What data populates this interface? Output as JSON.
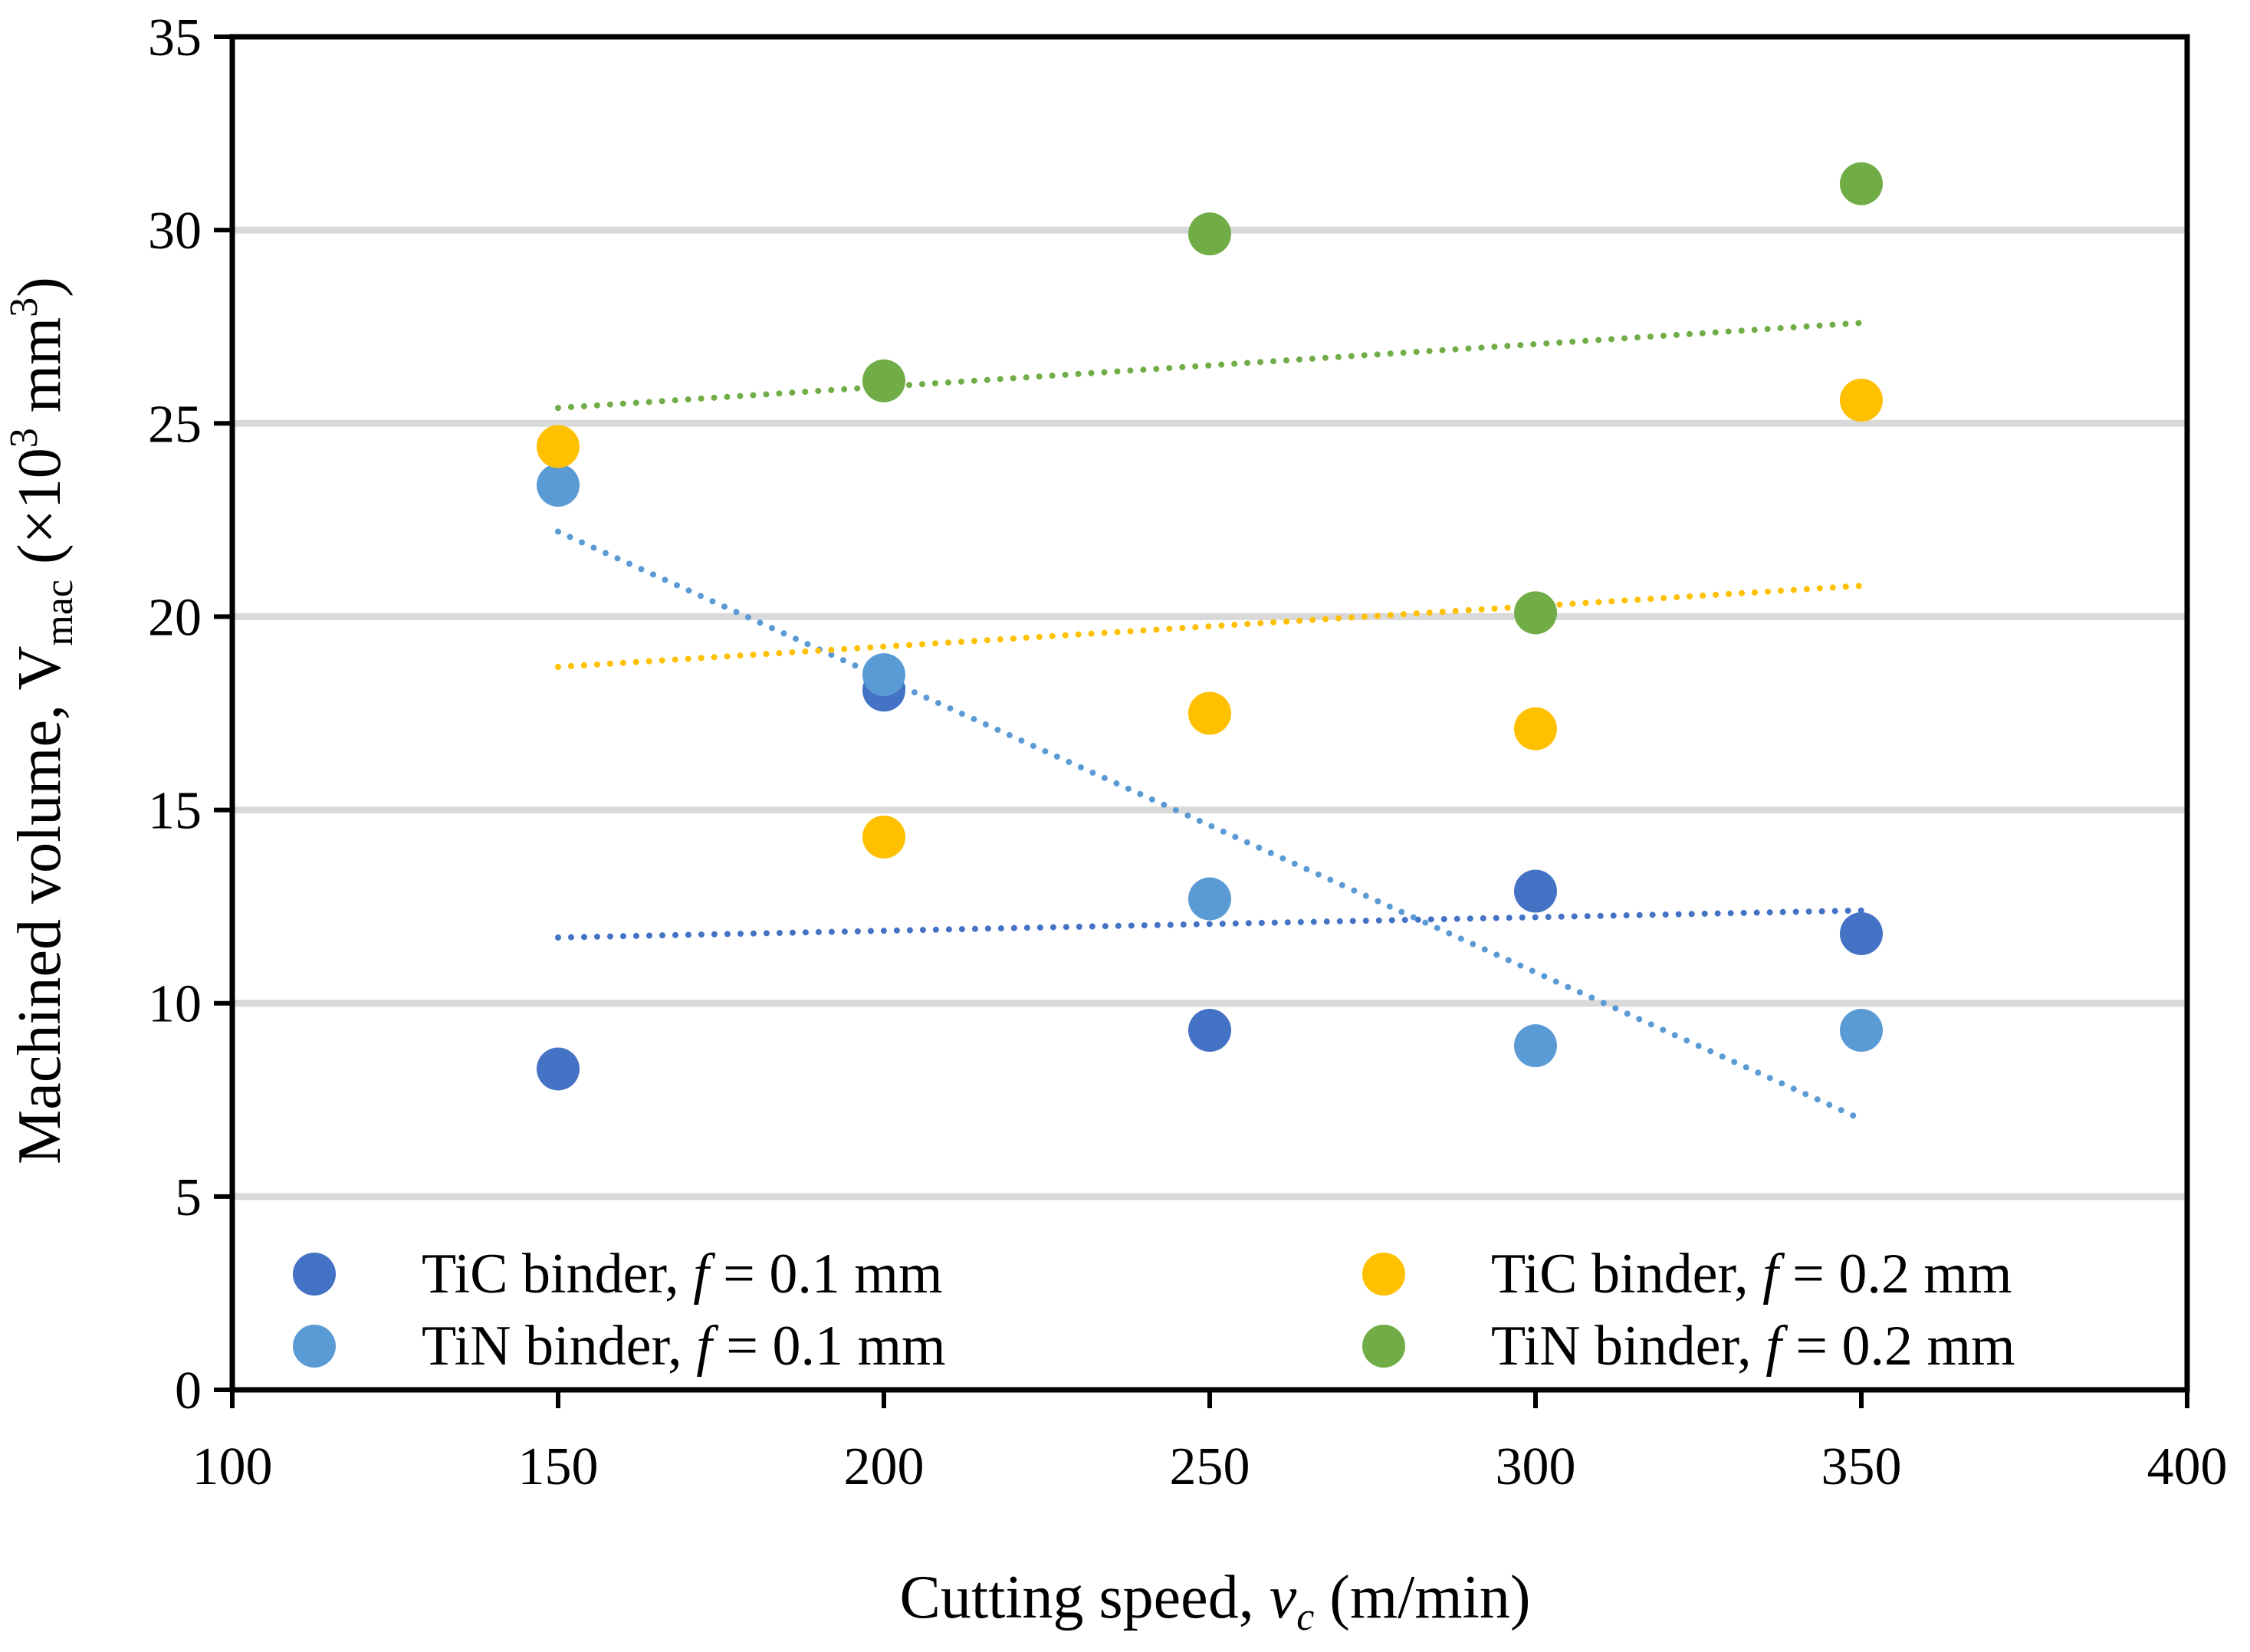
{
  "chart_data": {
    "type": "scatter",
    "title": "",
    "xlabel": {
      "prefix": "Cutting speed, ",
      "var": "v",
      "sub": "c",
      "suffix": " (m/min)"
    },
    "ylabel": {
      "prefix": "Machined volume, V",
      "sub": "mac",
      "mid": " (×10",
      "sup1": "3",
      "unit": " mm",
      "sup2": "3",
      "suffix": ")"
    },
    "xlim": [
      100,
      400
    ],
    "ylim": [
      0,
      35
    ],
    "xticks": [
      100,
      150,
      200,
      250,
      300,
      350,
      400
    ],
    "yticks": [
      0,
      5,
      10,
      15,
      20,
      25,
      30,
      35
    ],
    "grid": "horizontal",
    "legend_position": "bottom",
    "series": [
      {
        "name": "TiC binder, f = 0.1 mm",
        "label_prefix": "TiC binder, ",
        "label_var": "f",
        "label_suffix": " = 0.1 mm",
        "color": "#4472C4",
        "x": [
          150,
          200,
          250,
          300,
          350
        ],
        "y": [
          8.3,
          18.1,
          9.3,
          12.9,
          11.8
        ],
        "trend": [
          11.7,
          12.4
        ]
      },
      {
        "name": "TiN binder, f = 0.1 mm",
        "label_prefix": "TiN binder, ",
        "label_var": "f",
        "label_suffix": " = 0.1 mm",
        "color": "#5B9BD5",
        "x": [
          150,
          200,
          250,
          300,
          350
        ],
        "y": [
          23.4,
          18.5,
          12.7,
          8.9,
          9.3
        ],
        "trend": [
          22.2,
          7.0
        ]
      },
      {
        "name": "TiC binder, f = 0.2 mm",
        "label_prefix": "TiC binder, ",
        "label_var": "f",
        "label_suffix": " = 0.2 mm",
        "color": "#FFC000",
        "x": [
          150,
          200,
          250,
          300,
          350
        ],
        "y": [
          24.4,
          14.3,
          17.5,
          17.1,
          25.6
        ],
        "trend": [
          18.7,
          20.8
        ]
      },
      {
        "name": "TiN binder, f = 0.2 mm",
        "label_prefix": "TiN binder, ",
        "label_var": "f",
        "label_suffix": " = 0.2 mm",
        "color": "#70AD47",
        "x": [
          150,
          200,
          250,
          300,
          350
        ],
        "y": [
          null,
          26.1,
          29.9,
          20.1,
          31.2
        ],
        "trend": [
          25.4,
          27.6
        ]
      }
    ]
  }
}
